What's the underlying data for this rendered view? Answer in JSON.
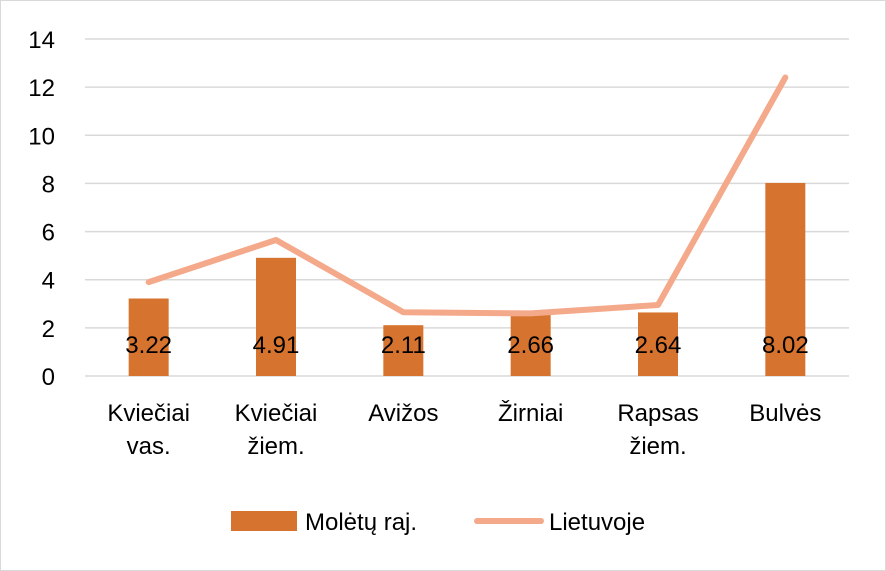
{
  "chart_data": {
    "type": "bar",
    "categories": [
      [
        "Kviečiai",
        "vas."
      ],
      [
        "Kviečiai",
        "žiem."
      ],
      [
        "Avižos"
      ],
      [
        "Žirniai"
      ],
      [
        "Rapsas",
        "žiem."
      ],
      [
        "Bulvės"
      ]
    ],
    "series": [
      {
        "name": "Molėtų raj.",
        "type": "bar",
        "color": "#D6732E",
        "values": [
          3.22,
          4.91,
          2.11,
          2.66,
          2.64,
          8.02
        ],
        "data_labels": [
          "3.22",
          "4.91",
          "2.11",
          "2.66",
          "2.64",
          "8.02"
        ]
      },
      {
        "name": "Lietuvoje",
        "type": "line",
        "color": "#F4A98B",
        "values": [
          3.9,
          5.65,
          2.65,
          2.6,
          2.95,
          12.4
        ]
      }
    ],
    "ylim": [
      0,
      14
    ],
    "yticks": [
      0,
      2,
      4,
      6,
      8,
      10,
      12,
      14
    ],
    "grid": true,
    "legend_position": "bottom"
  }
}
